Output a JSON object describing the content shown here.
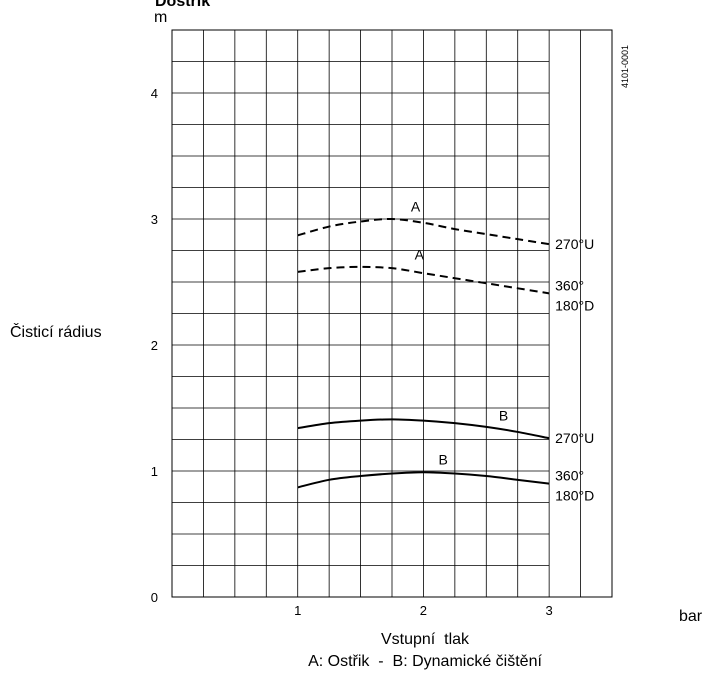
{
  "chart_data": {
    "type": "line",
    "title": "Dostřik",
    "y_unit": "m",
    "x_unit": "bar",
    "xlabel": "Vstupní  tlak",
    "ylabel": "Čisticí rádius",
    "caption": "A: Ostřik  -  B: Dynamické čištění",
    "figure_id": "4101-0001",
    "xlim": [
      0,
      3.5
    ],
    "ylim": [
      0,
      4.5
    ],
    "x_ticks": [
      1,
      2,
      3
    ],
    "y_ticks": [
      0,
      1,
      2,
      3,
      4
    ],
    "x_tick_labels": [
      "1",
      "2",
      "3"
    ],
    "y_tick_labels": [
      "0",
      "1",
      "2",
      "3",
      "4"
    ],
    "grid": true,
    "series": [
      {
        "curve_label": "A",
        "end_label": [
          "270°U"
        ],
        "style": "dashed",
        "points": [
          [
            1.0,
            2.87
          ],
          [
            1.25,
            2.94
          ],
          [
            1.5,
            2.98
          ],
          [
            1.75,
            3.0
          ],
          [
            2.0,
            2.97
          ],
          [
            2.25,
            2.92
          ],
          [
            2.5,
            2.88
          ],
          [
            2.75,
            2.84
          ],
          [
            3.0,
            2.8
          ]
        ],
        "label_pos": [
          1.9,
          3.06
        ]
      },
      {
        "curve_label": "A",
        "end_label": [
          "360°",
          "180°D"
        ],
        "style": "dashed",
        "points": [
          [
            1.0,
            2.58
          ],
          [
            1.25,
            2.61
          ],
          [
            1.5,
            2.62
          ],
          [
            1.75,
            2.61
          ],
          [
            2.0,
            2.57
          ],
          [
            2.25,
            2.53
          ],
          [
            2.5,
            2.49
          ],
          [
            2.75,
            2.45
          ],
          [
            3.0,
            2.41
          ]
        ],
        "label_pos": [
          1.93,
          2.68
        ]
      },
      {
        "curve_label": "B",
        "end_label": [
          "270°U"
        ],
        "style": "solid",
        "points": [
          [
            1.0,
            1.34
          ],
          [
            1.25,
            1.38
          ],
          [
            1.5,
            1.4
          ],
          [
            1.75,
            1.41
          ],
          [
            2.0,
            1.4
          ],
          [
            2.25,
            1.38
          ],
          [
            2.5,
            1.35
          ],
          [
            2.75,
            1.31
          ],
          [
            3.0,
            1.26
          ]
        ],
        "label_pos": [
          2.6,
          1.4
        ]
      },
      {
        "curve_label": "B",
        "end_label": [
          "360°",
          "180°D"
        ],
        "style": "solid",
        "points": [
          [
            1.0,
            0.87
          ],
          [
            1.25,
            0.93
          ],
          [
            1.5,
            0.96
          ],
          [
            1.75,
            0.98
          ],
          [
            2.0,
            0.99
          ],
          [
            2.25,
            0.98
          ],
          [
            2.5,
            0.96
          ],
          [
            2.75,
            0.93
          ],
          [
            3.0,
            0.9
          ]
        ],
        "label_pos": [
          2.12,
          1.05
        ]
      }
    ]
  }
}
